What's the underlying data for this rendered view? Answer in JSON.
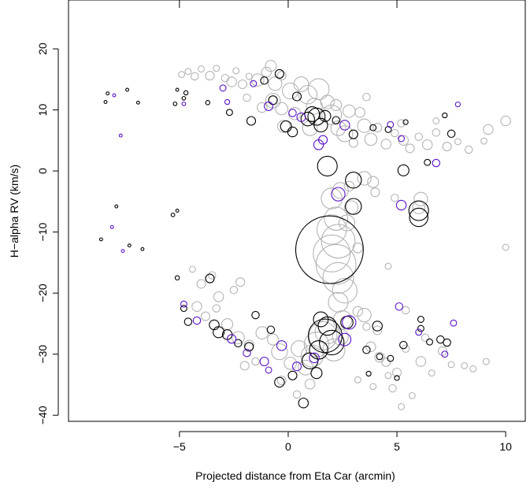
{
  "chart_data": {
    "type": "scatter",
    "title": "",
    "xlabel": "Projected distance from Eta Car (arcmin)",
    "ylabel": "H−alpha RV (km/s)",
    "xlim": [
      -10.1,
      10.9
    ],
    "ylim": [
      -41,
      28
    ],
    "x_ticks": [
      -5,
      0,
      5,
      10
    ],
    "x_tick_labels": [
      "−5",
      "0",
      "5",
      "10"
    ],
    "y_ticks": [
      -40,
      -30,
      -20,
      -10,
      0,
      10,
      20
    ],
    "y_tick_labels": [
      "−40",
      "−30",
      "−20",
      "−10",
      "0",
      "10",
      "20"
    ],
    "top_ticks": [
      -5,
      0,
      5
    ],
    "grid": false,
    "legend": "none",
    "marker": "open circle (size encodes a third quantity)",
    "series": [
      {
        "color": "#b4b4b4",
        "points": [
          [
            -4.9,
            15.8,
            1
          ],
          [
            -4.6,
            16.3,
            1
          ],
          [
            -4.3,
            15.5,
            1.2
          ],
          [
            -4.0,
            16.7,
            1
          ],
          [
            -3.6,
            15.6,
            1.4
          ],
          [
            -3.3,
            16.8,
            1
          ],
          [
            -2.9,
            15.2,
            1.2
          ],
          [
            -2.4,
            16.4,
            1
          ],
          [
            -2.6,
            14.6,
            1.6
          ],
          [
            -2.1,
            14.2,
            1.4
          ],
          [
            -1.8,
            15.5,
            1
          ],
          [
            -1.4,
            14.9,
            2
          ],
          [
            -1.0,
            16.2,
            1.6
          ],
          [
            -0.6,
            14.3,
            2.2
          ],
          [
            -0.3,
            15.6,
            1.4
          ],
          [
            -0.8,
            17.2,
            1.8
          ],
          [
            -0.7,
            11.5,
            2.4
          ],
          [
            -0.3,
            10.2,
            2
          ],
          [
            0.1,
            13.1,
            2.6
          ],
          [
            0.3,
            9.4,
            2
          ],
          [
            0.6,
            14.2,
            2.4
          ],
          [
            0.9,
            12.5,
            3
          ],
          [
            1.2,
            10.6,
            2.6
          ],
          [
            1.4,
            13.4,
            3.4
          ],
          [
            1.8,
            11.3,
            2.2
          ],
          [
            2.0,
            9.2,
            3.2
          ],
          [
            2.3,
            7.0,
            2.4
          ],
          [
            2.6,
            6.1,
            2.6
          ],
          [
            2.8,
            9.8,
            2
          ],
          [
            3.3,
            9.6,
            1.6
          ],
          [
            3.5,
            7.4,
            2.2
          ],
          [
            3.8,
            5.2,
            2
          ],
          [
            4.1,
            7.1,
            1.4
          ],
          [
            4.5,
            4.4,
            1.6
          ],
          [
            4.9,
            6.2,
            1.2
          ],
          [
            5.3,
            5.0,
            1.6
          ],
          [
            5.6,
            3.7,
            1.4
          ],
          [
            6.0,
            5.6,
            1.2
          ],
          [
            6.4,
            4.3,
            1.6
          ],
          [
            6.8,
            6.3,
            1.2
          ],
          [
            7.3,
            4.0,
            1.4
          ],
          [
            7.8,
            4.8,
            1
          ],
          [
            8.3,
            3.5,
            1.2
          ],
          [
            9.2,
            6.8,
            1.6
          ],
          [
            10.0,
            8.2,
            1.6
          ],
          [
            9.0,
            4.9,
            1
          ],
          [
            -1.2,
            10.4,
            1.6
          ],
          [
            -1.9,
            12.0,
            1.2
          ],
          [
            -0.2,
            7.3,
            2
          ],
          [
            1.0,
            7.0,
            2.4
          ],
          [
            2.2,
            10.8,
            1.8
          ],
          [
            3.0,
            4.6,
            1.4
          ],
          [
            3.6,
            12.1,
            1.2
          ],
          [
            5.2,
            7.8,
            1.2
          ],
          [
            6.8,
            8.2,
            1
          ],
          [
            3.5,
            -1.2,
            2.2
          ],
          [
            3.9,
            -1.8,
            1.8
          ],
          [
            2.4,
            -3.2,
            2.6
          ],
          [
            2.0,
            -4.5,
            3.4
          ],
          [
            2.9,
            -6.0,
            2.2
          ],
          [
            2.2,
            -7.8,
            3.8
          ],
          [
            2.7,
            -8.5,
            2.6
          ],
          [
            2.0,
            -9.6,
            4.8
          ],
          [
            2.3,
            -11.5,
            5.5
          ],
          [
            2.0,
            -13.5,
            6
          ],
          [
            2.2,
            -15.3,
            6.5
          ],
          [
            2.3,
            -17.5,
            5
          ],
          [
            2.6,
            -19.6,
            4
          ],
          [
            2.3,
            -21.5,
            3.2
          ],
          [
            4.0,
            -3.5,
            1.4
          ],
          [
            3.2,
            -12.6,
            1.6
          ],
          [
            4.9,
            -4.4,
            1.2
          ],
          [
            6.0,
            -6.0,
            2
          ],
          [
            6.1,
            -4.6,
            2.2
          ],
          [
            4.6,
            -15.6,
            1
          ],
          [
            2.8,
            -2.5,
            1.6
          ],
          [
            10.0,
            -12.5,
            1
          ],
          [
            -4.4,
            -16.1,
            1
          ],
          [
            -4.0,
            -18.5,
            1.4
          ],
          [
            -3.5,
            -17.1,
            1.2
          ],
          [
            -3.2,
            -20.6,
            1.6
          ],
          [
            -2.5,
            -19.5,
            1.2
          ],
          [
            -2.2,
            -18.2,
            1.4
          ],
          [
            -4.2,
            -22.2,
            1.6
          ],
          [
            -3.8,
            -23.8,
            1.4
          ],
          [
            -3.3,
            -22.5,
            1.2
          ],
          [
            -2.8,
            -25.1,
            1.8
          ],
          [
            -2.3,
            -27.3,
            2
          ],
          [
            -1.8,
            -28.5,
            1.6
          ],
          [
            -1.2,
            -26.5,
            2
          ],
          [
            -0.7,
            -27.6,
            1.8
          ],
          [
            -0.4,
            -29.6,
            2.6
          ],
          [
            0.1,
            -31.5,
            2
          ],
          [
            0.5,
            -29.1,
            2.6
          ],
          [
            0.8,
            -32.2,
            2.4
          ],
          [
            1.1,
            -30.3,
            3.6
          ],
          [
            1.3,
            -28.4,
            4
          ],
          [
            1.6,
            -27.0,
            4.6
          ],
          [
            1.8,
            -26.3,
            4
          ],
          [
            2.1,
            -29.3,
            3.6
          ],
          [
            2.5,
            -24.4,
            3
          ],
          [
            2.4,
            -27.2,
            2.6
          ],
          [
            3.5,
            -23.6,
            2.2
          ],
          [
            3.8,
            -28.8,
            1.6
          ],
          [
            4.1,
            -26.1,
            1.4
          ],
          [
            4.5,
            -31.3,
            1.4
          ],
          [
            4.8,
            -35.6,
            1.2
          ],
          [
            5.0,
            -33.0,
            1.4
          ],
          [
            5.4,
            -29.1,
            1.2
          ],
          [
            5.7,
            -36.8,
            1
          ],
          [
            6.1,
            -31.2,
            1.6
          ],
          [
            6.3,
            -27.3,
            1.2
          ],
          [
            6.6,
            -33.1,
            1
          ],
          [
            7.1,
            -29.5,
            1.4
          ],
          [
            7.5,
            -31.7,
            1
          ],
          [
            8.1,
            -31.9,
            1
          ],
          [
            8.5,
            -32.4,
            1
          ],
          [
            9.1,
            -31.2,
            1
          ],
          [
            3.2,
            -23.0,
            1.6
          ],
          [
            3.6,
            -25.5,
            1.2
          ],
          [
            4.2,
            -30.5,
            1.6
          ],
          [
            5.4,
            -22.8,
            1.2
          ],
          [
            -0.3,
            -34.3,
            1.4
          ],
          [
            0.4,
            -36.6,
            1.2
          ],
          [
            1.0,
            -34.9,
            1.6
          ],
          [
            -1.5,
            -31.2,
            1.2
          ],
          [
            -2.0,
            -31.9,
            1.4
          ],
          [
            3.2,
            -34.2,
            1
          ],
          [
            3.9,
            -35.3,
            1
          ],
          [
            5.2,
            -38.6,
            1
          ],
          [
            4.6,
            -33.5,
            1
          ]
        ]
      },
      {
        "color": "#000000",
        "points": [
          [
            -8.3,
            12.7,
            0.5
          ],
          [
            -7.4,
            13.3,
            0.5
          ],
          [
            -6.9,
            11.2,
            0.5
          ],
          [
            -5.2,
            11.0,
            0.6
          ],
          [
            -4.7,
            12.8,
            0.7
          ],
          [
            -4.8,
            11.9,
            0.6
          ],
          [
            -5.1,
            13.3,
            0.5
          ],
          [
            -3.7,
            11.2,
            0.7
          ],
          [
            -2.7,
            9.6,
            1
          ],
          [
            -1.7,
            8.2,
            1.4
          ],
          [
            -1.1,
            14.8,
            1.2
          ],
          [
            -0.7,
            11.6,
            1.4
          ],
          [
            -0.4,
            15.9,
            1.4
          ],
          [
            -0.1,
            7.3,
            1.8
          ],
          [
            0.2,
            6.4,
            1.6
          ],
          [
            0.4,
            12.2,
            1.4
          ],
          [
            0.9,
            8.5,
            2.2
          ],
          [
            1.1,
            9.3,
            2.4
          ],
          [
            1.3,
            8.9,
            2.8
          ],
          [
            1.5,
            7.5,
            2.2
          ],
          [
            1.7,
            9.0,
            1.8
          ],
          [
            2.2,
            8.3,
            1.2
          ],
          [
            3.0,
            6.0,
            1.4
          ],
          [
            3.9,
            7.1,
            1
          ],
          [
            4.6,
            6.8,
            1
          ],
          [
            5.4,
            8.0,
            0.8
          ],
          [
            6.4,
            1.4,
            1
          ],
          [
            7.2,
            9.1,
            0.8
          ],
          [
            7.5,
            6.1,
            1.2
          ],
          [
            1.8,
            0.8,
            3.2
          ],
          [
            3.0,
            -1.5,
            2.6
          ],
          [
            5.3,
            0.1,
            1.8
          ],
          [
            3.0,
            -5.8,
            2.6
          ],
          [
            6.0,
            -6.5,
            3.2
          ],
          [
            6.0,
            -7.6,
            3
          ],
          [
            1.9,
            -12.9,
            11
          ],
          [
            -8.6,
            -11.2,
            0.5
          ],
          [
            -7.9,
            -5.8,
            0.5
          ],
          [
            -7.3,
            -12.2,
            0.5
          ],
          [
            -6.7,
            -12.8,
            0.5
          ],
          [
            -5.3,
            -7.2,
            0.6
          ],
          [
            -5.1,
            -17.5,
            0.7
          ],
          [
            -4.8,
            -22.5,
            1
          ],
          [
            -4.6,
            -24.7,
            1.2
          ],
          [
            -3.6,
            -17.6,
            1.4
          ],
          [
            -3.4,
            -25.2,
            1.6
          ],
          [
            -3.2,
            -26.4,
            1.8
          ],
          [
            -2.8,
            -26.8,
            1.6
          ],
          [
            -2.3,
            -28.2,
            1.2
          ],
          [
            -1.8,
            -28.8,
            1.4
          ],
          [
            -1.5,
            -23.6,
            1.2
          ],
          [
            -0.8,
            -26.0,
            1.2
          ],
          [
            -0.4,
            -34.6,
            1.6
          ],
          [
            0.2,
            -33.5,
            1.4
          ],
          [
            0.7,
            -38.0,
            1.6
          ],
          [
            1.3,
            -33.1,
            1.8
          ],
          [
            1.0,
            -31.1,
            2.6
          ],
          [
            1.4,
            -29.3,
            3
          ],
          [
            1.7,
            -27.0,
            5.5
          ],
          [
            1.8,
            -25.4,
            3
          ],
          [
            1.5,
            -24.3,
            2.4
          ],
          [
            2.0,
            -28.1,
            4
          ],
          [
            2.7,
            -24.8,
            2
          ],
          [
            3.6,
            -29.3,
            1.2
          ],
          [
            4.1,
            -25.4,
            1.6
          ],
          [
            4.2,
            -30.4,
            1
          ],
          [
            4.7,
            -30.7,
            1
          ],
          [
            5.3,
            -28.5,
            1.2
          ],
          [
            6.1,
            -24.3,
            1
          ],
          [
            6.1,
            -25.8,
            1
          ],
          [
            6.5,
            -28.0,
            1
          ],
          [
            7.0,
            -27.6,
            1.2
          ],
          [
            7.3,
            -28.1,
            1.2
          ],
          [
            5.0,
            -33.9,
            0.8
          ],
          [
            3.7,
            -33.2,
            0.8
          ],
          [
            -5.1,
            -6.5,
            0.5
          ],
          [
            -8.4,
            11.3,
            0.5
          ]
        ]
      },
      {
        "color": "#5a14c8",
        "points": [
          [
            -8.0,
            12.4,
            0.5
          ],
          [
            -7.7,
            5.8,
            0.5
          ],
          [
            -4.8,
            11.0,
            0.6
          ],
          [
            -3.0,
            13.6,
            1
          ],
          [
            -2.8,
            11.3,
            0.8
          ],
          [
            -1.6,
            14.3,
            1
          ],
          [
            -0.9,
            10.6,
            1.4
          ],
          [
            0.2,
            9.5,
            1.2
          ],
          [
            0.6,
            8.8,
            1.4
          ],
          [
            1.4,
            4.3,
            1.6
          ],
          [
            1.6,
            5.1,
            1.4
          ],
          [
            2.6,
            7.5,
            1.6
          ],
          [
            4.7,
            7.6,
            1
          ],
          [
            5.2,
            5.3,
            1
          ],
          [
            6.8,
            1.3,
            1.2
          ],
          [
            7.8,
            10.9,
            0.8
          ],
          [
            2.3,
            -3.8,
            2.2
          ],
          [
            5.2,
            -5.6,
            1.6
          ],
          [
            -8.1,
            -9.2,
            0.5
          ],
          [
            -7.6,
            -13.1,
            0.5
          ],
          [
            -4.8,
            -21.8,
            1
          ],
          [
            -4.2,
            -24.5,
            1.2
          ],
          [
            -2.6,
            -27.5,
            1.4
          ],
          [
            -1.9,
            -29.8,
            1.2
          ],
          [
            -1.1,
            -31.2,
            1.4
          ],
          [
            -0.3,
            -28.6,
            1.6
          ],
          [
            0.4,
            -32.0,
            1.4
          ],
          [
            1.2,
            -30.6,
            1.6
          ],
          [
            2.8,
            -24.8,
            2.2
          ],
          [
            2.6,
            -27.6,
            2
          ],
          [
            5.1,
            -22.2,
            1.2
          ],
          [
            6.0,
            -26.4,
            1
          ],
          [
            7.2,
            -30.0,
            1
          ],
          [
            7.6,
            -24.9,
            1
          ],
          [
            -0.9,
            -32.6,
            1
          ]
        ]
      }
    ]
  }
}
